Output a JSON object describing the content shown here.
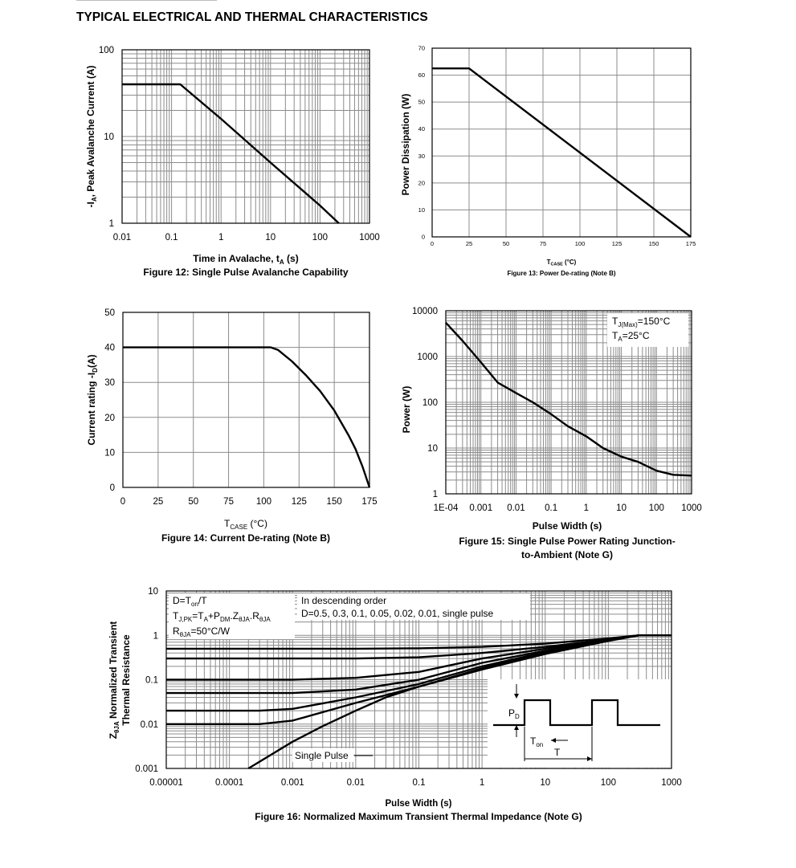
{
  "page": {
    "title": "TYPICAL ELECTRICAL AND THERMAL CHARACTERISTICS"
  },
  "figures": {
    "fig12": {
      "caption": "Figure 12: Single Pulse Avalanche Capability",
      "xlabel_main": "Time in Avalache, t",
      "xlabel_sub": "A",
      "xlabel_tail": " (s)",
      "ylabel_pre": "-I",
      "ylabel_sub": "A",
      "ylabel_tail": ", Peak Avalanche Current (A)"
    },
    "fig13": {
      "caption": "Figure 13: Power De-rating (Note B)",
      "xlabel_main": "T",
      "xlabel_sub": "CASE",
      "xlabel_tail": " (°C)",
      "ylabel": "Power Dissipation (W)"
    },
    "fig14": {
      "caption": "Figure 14: Current De-rating (Note B)",
      "xlabel_main": "T",
      "xlabel_sub": "CASE",
      "xlabel_tail": " (°C)",
      "ylabel_pre": "Current rating -I",
      "ylabel_sub": "D",
      "ylabel_tail": "(A)"
    },
    "fig15": {
      "caption_line1": "Figure 15: Single Pulse Power Rating Junction-",
      "caption_line2": "to-Ambient (Note G)",
      "xlabel": "Pulse Width (s)",
      "ylabel": "Power (W)",
      "legend_line1_pre": "T",
      "legend_line1_sub": "J(Max)",
      "legend_line1_tail": "=150°C",
      "legend_line2_pre": "T",
      "legend_line2_sub": "A",
      "legend_line2_tail": "=25°C"
    },
    "fig16": {
      "caption": "Figure 16: Normalized Maximum Transient Thermal Impedance (Note G)",
      "xlabel": "Pulse Width (s)",
      "ylabel_line1_pre": "Z",
      "ylabel_line1_sub": "θJA",
      "ylabel_line1_tail": " Normalized Transient",
      "ylabel_line2": "Thermal Resistance",
      "note1_pre": "D=T",
      "note1_sub": "on",
      "note1_tail": "/T",
      "note2_a": "T",
      "note2_a_sub": "J,PK",
      "note2_b": "=T",
      "note2_b_sub": "A",
      "note2_c": "+P",
      "note2_c_sub": "DM",
      "note2_d": ".Z",
      "note2_d_sub": "θJA",
      "note2_e": ".R",
      "note2_e_sub": "θJA",
      "note3_pre": "R",
      "note3_sub": "θJA",
      "note3_tail": "=50°C/W",
      "order_line1": "In descending order",
      "order_line2": "D=0.5, 0.3, 0.1, 0.05, 0.02, 0.01, single pulse",
      "single_pulse_label": "Single Pulse",
      "inset_pd": "P",
      "inset_pd_sub": "D",
      "inset_ton": "T",
      "inset_ton_sub": "on",
      "inset_t": "T"
    }
  },
  "chart_data": [
    {
      "id": "fig12",
      "type": "line",
      "title": "Figure 12: Single Pulse Avalanche Capability",
      "xlabel": "Time in Avalache, tA (s)",
      "ylabel": "-IA, Peak Avalanche Current (A)",
      "xscale": "log",
      "yscale": "log",
      "xlim": [
        0.01,
        1000
      ],
      "ylim": [
        1,
        100
      ],
      "x_ticks": [
        "0.01",
        "0.1",
        "1",
        "10",
        "100",
        "1000"
      ],
      "y_ticks": [
        "1",
        "10",
        "100"
      ],
      "grid": true,
      "series": [
        {
          "x": [
            0.01,
            0.15,
            1,
            10,
            100,
            240
          ],
          "y": [
            40,
            40,
            16,
            5,
            1.6,
            1
          ]
        }
      ]
    },
    {
      "id": "fig13",
      "type": "line",
      "title": "Figure 13: Power De-rating (Note B)",
      "xlabel": "TCASE (°C)",
      "ylabel": "Power Dissipation (W)",
      "xlim": [
        0,
        175
      ],
      "ylim": [
        0,
        70
      ],
      "x_ticks": [
        "0",
        "25",
        "50",
        "75",
        "100",
        "125",
        "150",
        "175"
      ],
      "y_ticks": [
        "0",
        "10",
        "20",
        "30",
        "40",
        "50",
        "60",
        "70"
      ],
      "grid": true,
      "series": [
        {
          "x": [
            0,
            25,
            175
          ],
          "y": [
            62.5,
            62.5,
            0
          ]
        }
      ]
    },
    {
      "id": "fig14",
      "type": "line",
      "title": "Figure 14: Current De-rating (Note B)",
      "xlabel": "TCASE (°C)",
      "ylabel": "Current rating -ID(A)",
      "xlim": [
        0,
        175
      ],
      "ylim": [
        0,
        50
      ],
      "x_ticks": [
        "0",
        "25",
        "50",
        "75",
        "100",
        "125",
        "150",
        "175"
      ],
      "y_ticks": [
        "0",
        "10",
        "20",
        "30",
        "40",
        "50"
      ],
      "grid": true,
      "series": [
        {
          "x": [
            0,
            105,
            110,
            120,
            130,
            140,
            150,
            160,
            165,
            170,
            175
          ],
          "y": [
            40,
            40,
            39.3,
            36,
            32,
            27.5,
            22,
            15,
            11,
            6,
            0
          ]
        }
      ]
    },
    {
      "id": "fig15",
      "type": "line",
      "title": "Figure 15: Single Pulse Power Rating Junction-to-Ambient (Note G)",
      "xlabel": "Pulse Width (s)",
      "ylabel": "Power (W)",
      "xscale": "log",
      "yscale": "log",
      "xlim": [
        0.0001,
        1000
      ],
      "ylim": [
        1,
        10000
      ],
      "x_ticks": [
        "1E-04",
        "0.001",
        "0.01",
        "0.1",
        "1",
        "10",
        "100",
        "1000"
      ],
      "y_ticks": [
        "1",
        "10",
        "100",
        "1000",
        "10000"
      ],
      "grid": true,
      "series": [
        {
          "x": [
            0.0001,
            0.0003,
            0.001,
            0.003,
            0.01,
            0.03,
            0.1,
            0.3,
            1,
            3,
            10,
            30,
            100,
            300,
            1000
          ],
          "y": [
            5500,
            2200,
            750,
            270,
            160,
            100,
            55,
            30,
            18,
            10,
            6.5,
            5,
            3.2,
            2.6,
            2.5
          ]
        }
      ]
    },
    {
      "id": "fig16",
      "type": "line",
      "title": "Figure 16: Normalized Maximum Transient Thermal Impedance (Note G)",
      "xlabel": "Pulse Width (s)",
      "ylabel": "ZθJA Normalized Transient Thermal Resistance",
      "xscale": "log",
      "yscale": "log",
      "xlim": [
        1e-05,
        1000
      ],
      "ylim": [
        0.001,
        10
      ],
      "x_ticks": [
        "0.00001",
        "0.0001",
        "0.001",
        "0.01",
        "0.1",
        "1",
        "10",
        "100",
        "1000"
      ],
      "y_ticks": [
        "0.001",
        "0.01",
        "0.1",
        "1",
        "10"
      ],
      "grid": true,
      "series": [
        {
          "name": "D=0.5",
          "x": [
            1e-05,
            0.01,
            0.1,
            1,
            10,
            100,
            300,
            1000
          ],
          "y": [
            0.5,
            0.5,
            0.51,
            0.55,
            0.65,
            0.85,
            1,
            1
          ]
        },
        {
          "name": "D=0.3",
          "x": [
            1e-05,
            0.01,
            0.1,
            1,
            10,
            100,
            300,
            1000
          ],
          "y": [
            0.3,
            0.3,
            0.32,
            0.4,
            0.55,
            0.8,
            1,
            1
          ]
        },
        {
          "name": "D=0.1",
          "x": [
            1e-05,
            0.001,
            0.01,
            0.1,
            1,
            10,
            100,
            300,
            1000
          ],
          "y": [
            0.1,
            0.1,
            0.11,
            0.15,
            0.3,
            0.5,
            0.82,
            1,
            1
          ]
        },
        {
          "name": "D=0.05",
          "x": [
            1e-05,
            0.001,
            0.01,
            0.1,
            1,
            10,
            100,
            300,
            1000
          ],
          "y": [
            0.05,
            0.05,
            0.06,
            0.1,
            0.24,
            0.45,
            0.8,
            1,
            1
          ]
        },
        {
          "name": "D=0.02",
          "x": [
            1e-05,
            0.0003,
            0.001,
            0.01,
            0.1,
            1,
            10,
            100,
            300,
            1000
          ],
          "y": [
            0.02,
            0.02,
            0.022,
            0.04,
            0.08,
            0.2,
            0.42,
            0.78,
            1,
            1
          ]
        },
        {
          "name": "D=0.01",
          "x": [
            1e-05,
            0.0003,
            0.001,
            0.01,
            0.1,
            1,
            10,
            100,
            300,
            1000
          ],
          "y": [
            0.01,
            0.01,
            0.012,
            0.03,
            0.07,
            0.18,
            0.4,
            0.77,
            1,
            1
          ]
        },
        {
          "name": "single pulse",
          "x": [
            0.0002,
            0.001,
            0.003,
            0.01,
            0.03,
            0.1,
            1,
            10,
            100,
            300,
            1000
          ],
          "y": [
            0.001,
            0.004,
            0.009,
            0.02,
            0.04,
            0.07,
            0.17,
            0.38,
            0.75,
            1,
            1
          ]
        }
      ]
    }
  ]
}
